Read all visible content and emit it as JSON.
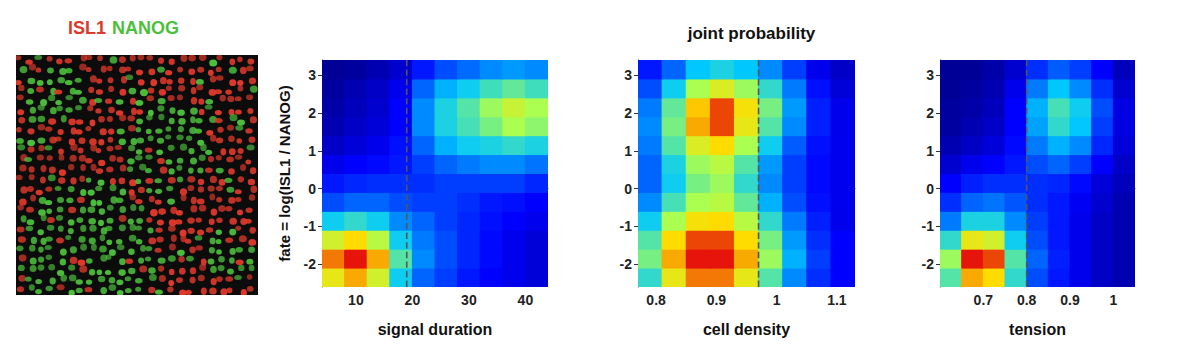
{
  "image": {
    "labels": [
      {
        "text": "ISL1",
        "color": "#e0392b"
      },
      {
        "text": "NANOG",
        "color": "#4cbf3c"
      }
    ]
  },
  "chart_data": [
    {
      "type": "heatmap",
      "xlabel": "signal duration",
      "ylabel": "fate = log(ISL1 / NANOG)",
      "xlim": [
        4,
        44
      ],
      "xticks": [
        10,
        20,
        30,
        40
      ],
      "ylim": [
        -2.6,
        3.4
      ],
      "yticks": [
        -2,
        -1,
        0,
        1,
        2,
        3
      ],
      "threshold": 19,
      "color_range": [
        0,
        1
      ],
      "x": [
        6,
        10,
        14,
        18,
        22,
        26,
        30,
        34,
        38,
        42
      ],
      "y": [
        -2.35,
        -1.85,
        -1.35,
        -0.85,
        -0.35,
        0.15,
        0.65,
        1.15,
        1.65,
        2.15,
        2.65,
        3.15
      ],
      "z": [
        [
          0.75,
          0.85,
          0.7,
          0.4,
          0.25,
          0.2,
          0.15,
          0.12,
          0.1,
          0.08
        ],
        [
          0.9,
          1.0,
          0.85,
          0.5,
          0.3,
          0.22,
          0.17,
          0.13,
          0.1,
          0.08
        ],
        [
          0.7,
          0.8,
          0.65,
          0.4,
          0.28,
          0.22,
          0.17,
          0.13,
          0.1,
          0.08
        ],
        [
          0.4,
          0.45,
          0.4,
          0.3,
          0.25,
          0.2,
          0.17,
          0.14,
          0.12,
          0.1
        ],
        [
          0.22,
          0.25,
          0.25,
          0.22,
          0.2,
          0.2,
          0.18,
          0.15,
          0.14,
          0.12
        ],
        [
          0.15,
          0.17,
          0.18,
          0.18,
          0.18,
          0.2,
          0.2,
          0.2,
          0.2,
          0.17
        ],
        [
          0.1,
          0.12,
          0.13,
          0.15,
          0.2,
          0.25,
          0.28,
          0.3,
          0.3,
          0.27
        ],
        [
          0.06,
          0.08,
          0.1,
          0.14,
          0.25,
          0.35,
          0.4,
          0.42,
          0.45,
          0.42
        ],
        [
          0.04,
          0.06,
          0.08,
          0.12,
          0.3,
          0.42,
          0.48,
          0.55,
          0.62,
          0.58
        ],
        [
          0.03,
          0.05,
          0.07,
          0.12,
          0.3,
          0.42,
          0.5,
          0.6,
          0.68,
          0.62
        ],
        [
          0.02,
          0.04,
          0.06,
          0.1,
          0.25,
          0.35,
          0.4,
          0.47,
          0.52,
          0.47
        ],
        [
          0.01,
          0.02,
          0.04,
          0.07,
          0.15,
          0.22,
          0.26,
          0.3,
          0.32,
          0.3
        ]
      ]
    },
    {
      "type": "heatmap",
      "title": "joint probability",
      "xlabel": "cell density",
      "xlim": [
        0.77,
        1.13
      ],
      "xticks": [
        0.8,
        0.9,
        1,
        1.1
      ],
      "ylim": [
        -2.6,
        3.4
      ],
      "yticks": [
        -2,
        -1,
        0,
        1,
        2,
        3
      ],
      "threshold": 0.97,
      "color_range": [
        0,
        1
      ],
      "x": [
        0.79,
        0.83,
        0.87,
        0.91,
        0.95,
        0.99,
        1.03,
        1.07,
        1.11
      ],
      "y": [
        -2.35,
        -1.85,
        -1.35,
        -0.85,
        -0.35,
        0.15,
        0.65,
        1.15,
        1.65,
        2.15,
        2.65,
        3.15
      ],
      "z": [
        [
          0.45,
          0.75,
          0.9,
          0.9,
          0.75,
          0.5,
          0.3,
          0.18,
          0.12
        ],
        [
          0.55,
          0.85,
          1.0,
          1.0,
          0.85,
          0.6,
          0.35,
          0.2,
          0.12
        ],
        [
          0.5,
          0.8,
          0.95,
          0.95,
          0.8,
          0.55,
          0.32,
          0.18,
          0.12
        ],
        [
          0.4,
          0.62,
          0.78,
          0.8,
          0.65,
          0.45,
          0.28,
          0.16,
          0.1
        ],
        [
          0.3,
          0.48,
          0.62,
          0.65,
          0.52,
          0.35,
          0.22,
          0.14,
          0.1
        ],
        [
          0.25,
          0.4,
          0.55,
          0.6,
          0.45,
          0.3,
          0.2,
          0.13,
          0.1
        ],
        [
          0.25,
          0.42,
          0.6,
          0.65,
          0.5,
          0.32,
          0.2,
          0.13,
          0.1
        ],
        [
          0.28,
          0.5,
          0.72,
          0.8,
          0.62,
          0.4,
          0.24,
          0.14,
          0.1
        ],
        [
          0.3,
          0.55,
          0.85,
          0.95,
          0.75,
          0.5,
          0.3,
          0.16,
          0.1
        ],
        [
          0.28,
          0.52,
          0.82,
          0.95,
          0.78,
          0.55,
          0.32,
          0.16,
          0.1
        ],
        [
          0.22,
          0.4,
          0.62,
          0.72,
          0.6,
          0.45,
          0.28,
          0.14,
          0.08
        ],
        [
          0.15,
          0.25,
          0.38,
          0.42,
          0.38,
          0.3,
          0.2,
          0.1,
          0.06
        ]
      ]
    },
    {
      "type": "heatmap",
      "xlabel": "tension",
      "xlim": [
        0.6,
        1.05
      ],
      "xticks": [
        0.7,
        0.8,
        0.9,
        1
      ],
      "ylim": [
        -2.6,
        3.4
      ],
      "yticks": [
        -2,
        -1,
        0,
        1,
        2,
        3
      ],
      "threshold": 0.8,
      "color_range": [
        0,
        1
      ],
      "x": [
        0.625,
        0.675,
        0.725,
        0.775,
        0.825,
        0.875,
        0.925,
        0.975,
        1.025
      ],
      "y": [
        -2.35,
        -1.85,
        -1.35,
        -0.85,
        -0.35,
        0.15,
        0.65,
        1.15,
        1.65,
        2.15,
        2.65,
        3.15
      ],
      "z": [
        [
          0.5,
          0.85,
          0.8,
          0.45,
          0.22,
          0.15,
          0.1,
          0.06,
          0.04
        ],
        [
          0.6,
          1.0,
          0.95,
          0.5,
          0.25,
          0.16,
          0.1,
          0.06,
          0.04
        ],
        [
          0.45,
          0.75,
          0.7,
          0.4,
          0.22,
          0.15,
          0.1,
          0.06,
          0.04
        ],
        [
          0.28,
          0.42,
          0.42,
          0.3,
          0.2,
          0.15,
          0.1,
          0.06,
          0.04
        ],
        [
          0.18,
          0.25,
          0.27,
          0.23,
          0.18,
          0.15,
          0.11,
          0.07,
          0.04
        ],
        [
          0.12,
          0.16,
          0.18,
          0.18,
          0.18,
          0.17,
          0.13,
          0.08,
          0.05
        ],
        [
          0.07,
          0.1,
          0.12,
          0.15,
          0.22,
          0.25,
          0.2,
          0.12,
          0.06
        ],
        [
          0.04,
          0.06,
          0.08,
          0.13,
          0.28,
          0.35,
          0.3,
          0.17,
          0.08
        ],
        [
          0.02,
          0.04,
          0.06,
          0.12,
          0.33,
          0.45,
          0.38,
          0.2,
          0.09
        ],
        [
          0.02,
          0.03,
          0.05,
          0.12,
          0.35,
          0.48,
          0.4,
          0.22,
          0.09
        ],
        [
          0.01,
          0.02,
          0.04,
          0.1,
          0.28,
          0.38,
          0.3,
          0.18,
          0.07
        ],
        [
          0.01,
          0.01,
          0.03,
          0.07,
          0.18,
          0.24,
          0.2,
          0.12,
          0.05
        ]
      ]
    }
  ]
}
